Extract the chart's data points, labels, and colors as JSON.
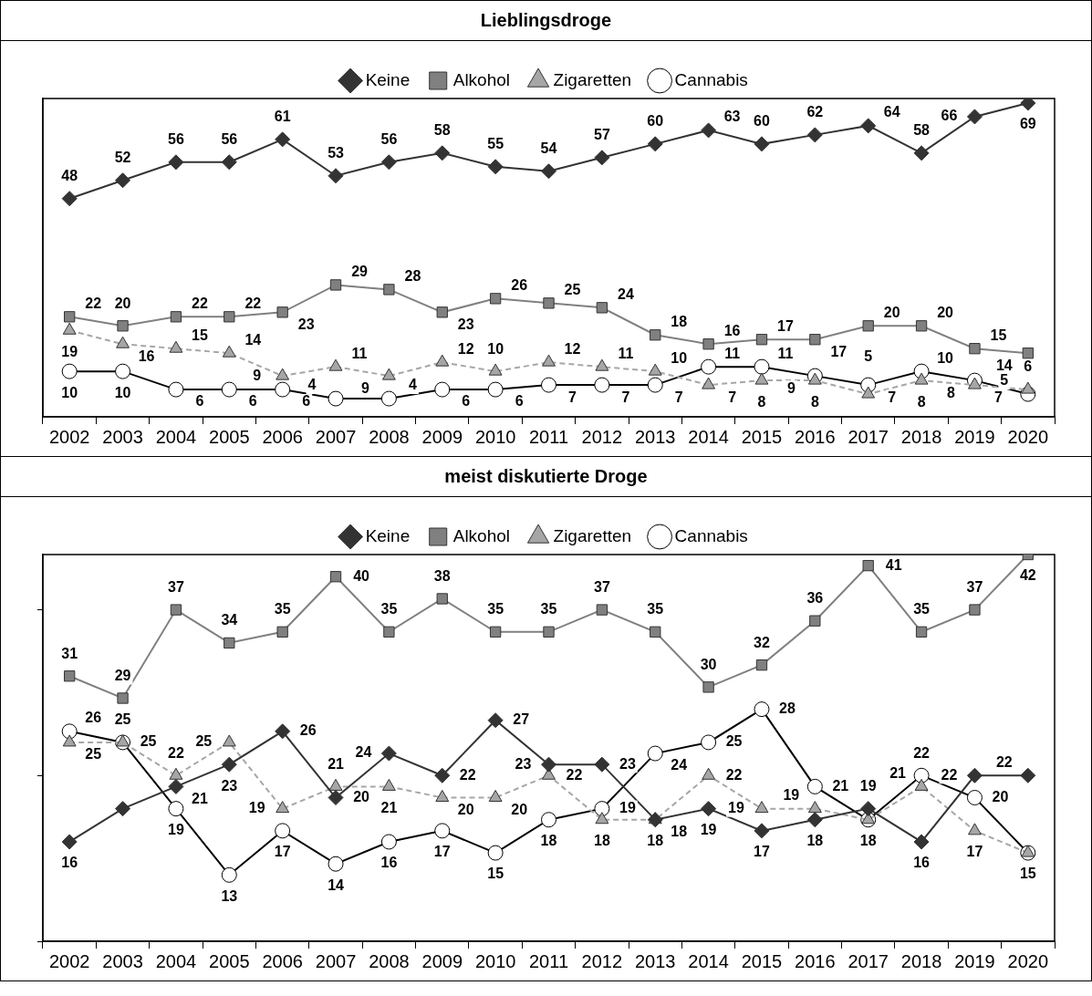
{
  "chart_data": [
    {
      "type": "line",
      "title": "Lieblingsdroge",
      "categories": [
        "2002",
        "2003",
        "2004",
        "2005",
        "2006",
        "2007",
        "2008",
        "2009",
        "2010",
        "2011",
        "2012",
        "2013",
        "2014",
        "2015",
        "2016",
        "2017",
        "2018",
        "2019",
        "2020"
      ],
      "series": [
        {
          "name": "Keine",
          "color": "#333333",
          "marker": "diamond",
          "line_style": "solid",
          "values": [
            48,
            52,
            56,
            56,
            61,
            53,
            56,
            58,
            55,
            54,
            57,
            60,
            63,
            60,
            62,
            64,
            58,
            66,
            69
          ]
        },
        {
          "name": "Alkohol",
          "color": "#808080",
          "marker": "square",
          "line_style": "solid",
          "values": [
            22,
            20,
            22,
            22,
            23,
            29,
            28,
            23,
            26,
            25,
            24,
            18,
            16,
            17,
            17,
            20,
            20,
            15,
            14
          ]
        },
        {
          "name": "Zigaretten",
          "color": "#a6a6a6",
          "marker": "triangle",
          "line_style": "dashed",
          "values": [
            19,
            16,
            15,
            14,
            9,
            11,
            9,
            12,
            10,
            12,
            11,
            10,
            7,
            8,
            8,
            5,
            8,
            7,
            6
          ]
        },
        {
          "name": "Cannabis",
          "color": "#000000",
          "marker": "circle",
          "line_style": "solid",
          "values": [
            10,
            10,
            6,
            6,
            6,
            4,
            4,
            6,
            6,
            7,
            7,
            7,
            11,
            11,
            9,
            7,
            10,
            8,
            5
          ]
        }
      ],
      "ylim": [
        0,
        70
      ],
      "tick_labels": "x",
      "legend": "top",
      "grid": false,
      "data_labels": true
    },
    {
      "type": "line",
      "title": "meist diskutierte Droge",
      "categories": [
        "2002",
        "2003",
        "2004",
        "2005",
        "2006",
        "2007",
        "2008",
        "2009",
        "2010",
        "2011",
        "2012",
        "2013",
        "2014",
        "2015",
        "2016",
        "2017",
        "2018",
        "2019",
        "2020"
      ],
      "series": [
        {
          "name": "Keine",
          "color": "#333333",
          "marker": "diamond",
          "line_style": "solid",
          "values": [
            16,
            19,
            21,
            23,
            26,
            20,
            24,
            22,
            27,
            23,
            23,
            18,
            19,
            17,
            18,
            19,
            16,
            22,
            22
          ],
          "value_labels": [
            "16",
            null,
            "21",
            "23",
            "26",
            "20",
            "24",
            "22",
            "27",
            "23",
            "23",
            "18",
            "19",
            "17",
            "18",
            "19",
            "16",
            "22",
            "22"
          ]
        },
        {
          "name": "Alkohol",
          "color": "#808080",
          "marker": "square",
          "line_style": "solid",
          "values": [
            31,
            29,
            37,
            34,
            35,
            40,
            35,
            38,
            35,
            35,
            37,
            35,
            30,
            32,
            36,
            41,
            35,
            37,
            42
          ],
          "value_labels": [
            "31",
            "29",
            "37",
            "34",
            "35",
            "40",
            "35",
            "38",
            "35",
            "35",
            "37",
            "35",
            "30",
            "32",
            "36",
            "41",
            "35",
            "37",
            "42"
          ]
        },
        {
          "name": "Zigaretten",
          "color": "#a6a6a6",
          "marker": "triangle",
          "line_style": "dashed",
          "values": [
            25,
            25,
            22,
            25,
            19,
            21,
            21,
            20,
            20,
            22,
            18,
            18,
            22,
            19,
            19,
            18,
            21,
            17,
            15
          ],
          "value_labels": [
            "25",
            "25",
            "22",
            "25",
            "19",
            "21",
            "21",
            "20",
            "20",
            "22",
            "18",
            "18",
            "22",
            "19",
            "19",
            null,
            "21",
            "17",
            null
          ]
        },
        {
          "name": "Cannabis",
          "color": "#000000",
          "marker": "circle",
          "line_style": "solid",
          "values": [
            26,
            25,
            19,
            13,
            17,
            14,
            16,
            17,
            15,
            18,
            19,
            24,
            25,
            28,
            21,
            18,
            22,
            20,
            15
          ],
          "value_labels": [
            "26",
            "25",
            "19",
            "13",
            "17",
            "14",
            "16",
            "17",
            "15",
            "18",
            "19",
            "24",
            "25",
            "28",
            "21",
            "18",
            "22",
            "20",
            "15"
          ]
        }
      ],
      "ylim": [
        7,
        42
      ],
      "yticks": [
        {
          "value": 7,
          "label": null
        },
        {
          "value": 22,
          "label": null
        },
        {
          "value": 37,
          "label": null
        }
      ],
      "tick_labels": "x",
      "legend": "top",
      "grid": false
    }
  ]
}
